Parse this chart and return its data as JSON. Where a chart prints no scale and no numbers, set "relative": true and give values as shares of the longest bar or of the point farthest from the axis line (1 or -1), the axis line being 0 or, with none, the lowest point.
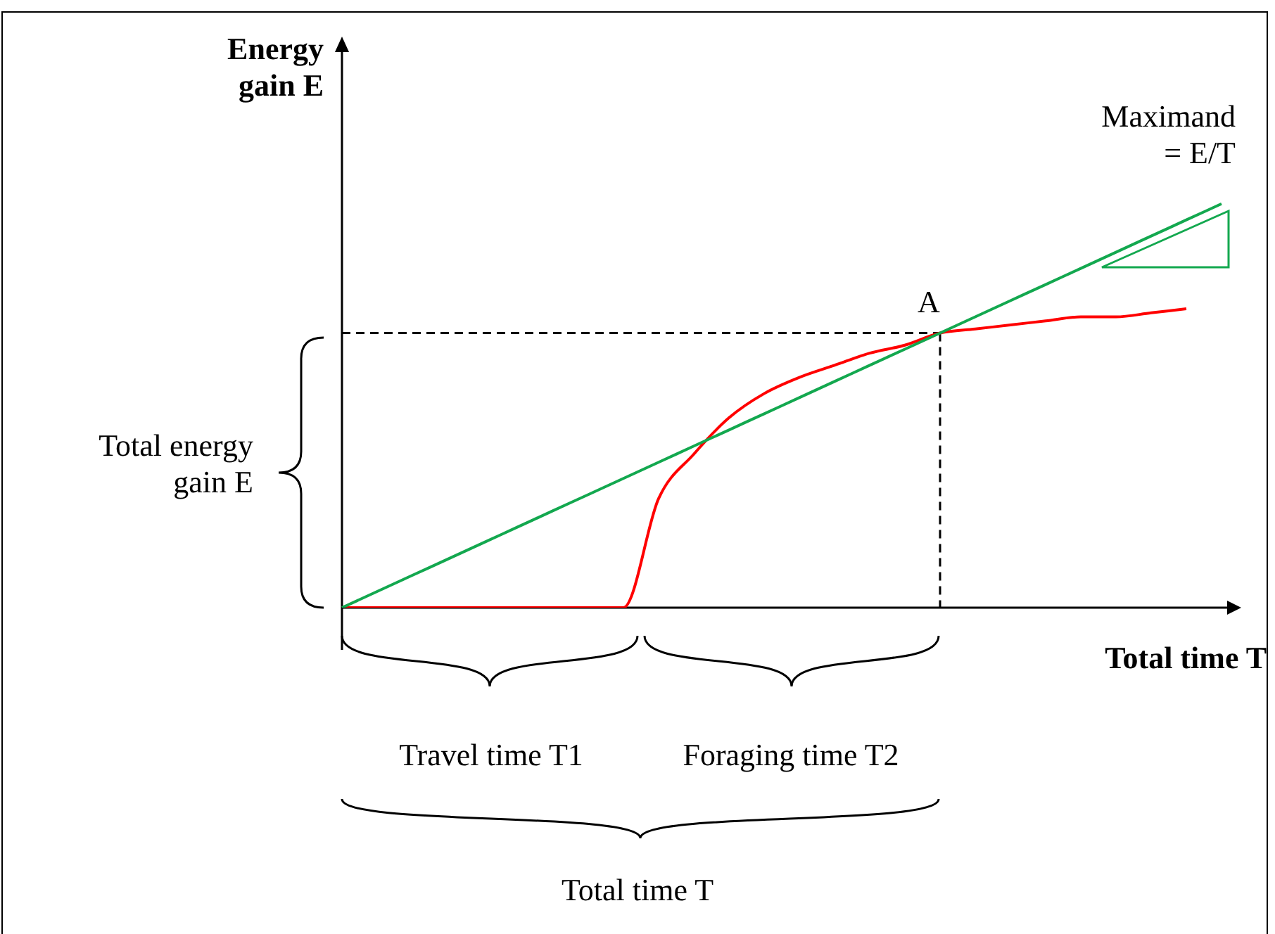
{
  "chart_data": {
    "type": "line",
    "relative": true,
    "xlabel": "Total time T",
    "ylabel": "Energy gain E",
    "categories": [
      null,
      null,
      null,
      null,
      null,
      null,
      null,
      null,
      null,
      null,
      null,
      null,
      null,
      null,
      null,
      null,
      null,
      null,
      null,
      null,
      null,
      null,
      null,
      null,
      null,
      null
    ],
    "series": [
      {
        "color": "#13a84f",
        "values": [
          0,
          0.04,
          0.08,
          0.12,
          0.16,
          0.2,
          0.24,
          0.28,
          0.32,
          0.36,
          0.4,
          0.44,
          0.48,
          0.52,
          0.56,
          0.6,
          0.64,
          0.68,
          0.72,
          0.76,
          0.8,
          0.84,
          0.88,
          0.92,
          0.96,
          1
        ]
      },
      {
        "color": "#ff0000",
        "values": [
          0,
          0,
          0,
          0,
          0,
          0,
          0,
          0,
          0,
          0.27,
          0.38,
          0.47,
          0.53,
          0.57,
          0.6,
          0.63,
          0.65,
          0.68,
          0.69,
          0.7,
          0.71,
          0.72,
          0.72,
          0.73,
          0.74,
          null
        ]
      }
    ],
    "ref_lines": [
      {
        "axis": "y",
        "value": 0.68,
        "line_style": "dashed"
      }
    ],
    "annotations": [
      "Maximand = E/T",
      "A",
      "Total energy gain E",
      "Travel time T1",
      "Foraging time T2",
      "Total time T"
    ],
    "marker": "none",
    "line_style": "solid",
    "grid": false,
    "legend": false
  }
}
